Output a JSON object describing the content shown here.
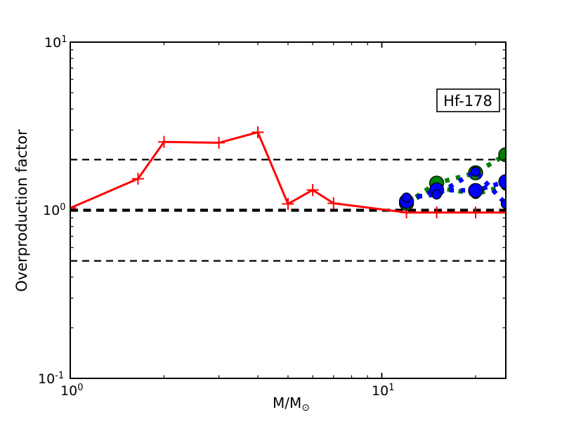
{
  "figure": {
    "background": "#ffffff",
    "frame_color": "#000000"
  },
  "legend": {
    "label": "Hf-178"
  },
  "chart_data": {
    "type": "line",
    "title": "",
    "xlabel_main": "M/M",
    "xlabel_sub": "⊙",
    "ylabel": "Overproduction factor",
    "xscale": "log",
    "yscale": "log",
    "xlim": [
      1,
      25
    ],
    "ylim": [
      0.1,
      10
    ],
    "grid": false,
    "annotation": "Hf-178",
    "annotation_position": "top-right",
    "tick_labels": {
      "x": [
        {
          "base": "10",
          "exp": "0"
        },
        {
          "base": "10",
          "exp": "1"
        }
      ],
      "y": [
        {
          "base": "10",
          "exp": "-1"
        },
        {
          "base": "10",
          "exp": "0"
        },
        {
          "base": "10",
          "exp": "1"
        }
      ]
    },
    "x_ticks": {
      "major": [
        1,
        10
      ],
      "minor": [
        2,
        3,
        4,
        5,
        6,
        7,
        8,
        9,
        20
      ]
    },
    "y_ticks": {
      "major": [
        0.1,
        1,
        10
      ],
      "minor": [
        0.2,
        0.3,
        0.4,
        0.5,
        0.6,
        0.7,
        0.8,
        0.9,
        2,
        3,
        4,
        5,
        6,
        7,
        8,
        9
      ]
    },
    "guide_lines": [
      {
        "y": 2.0,
        "weight": "thin",
        "color": "#000000",
        "style": "dashed"
      },
      {
        "y": 0.5,
        "weight": "thin",
        "color": "#000000",
        "style": "dashed"
      },
      {
        "y": 1.0,
        "weight": "thick",
        "color": "#000000",
        "style": "dashed"
      }
    ],
    "series": [
      {
        "name": "agb-models-red",
        "color": "#ff0000",
        "line_style": "solid",
        "marker": "plus",
        "marker_size": "small",
        "x": [
          1,
          1.65,
          2,
          3,
          4,
          5,
          6,
          7,
          12,
          15,
          20,
          25
        ],
        "y": [
          1.03,
          1.54,
          2.55,
          2.52,
          2.91,
          1.09,
          1.32,
          1.1,
          0.97,
          0.97,
          0.97,
          0.97
        ]
      },
      {
        "name": "massive-green-small-circles",
        "color": "#008000",
        "line_style": "dashed",
        "marker": "circle",
        "marker_size": "small",
        "x": [
          12,
          15,
          20,
          25
        ],
        "y": [
          1.1,
          1.37,
          1.25,
          1.4
        ]
      },
      {
        "name": "massive-green-large-circles",
        "color": "#008000",
        "line_style": "dashed",
        "marker": "circle",
        "marker_size": "large",
        "x": [
          12,
          15,
          20,
          25
        ],
        "y": [
          1.1,
          1.45,
          1.67,
          2.14
        ]
      },
      {
        "name": "massive-blue-large-circles",
        "color": "#0000ff",
        "line_style": "dashed",
        "marker": "circle",
        "marker_size": "large",
        "x": [
          12,
          15,
          20,
          25
        ],
        "y": [
          1.13,
          1.32,
          1.31,
          1.48
        ]
      },
      {
        "name": "massive-blue-small-circles",
        "color": "#0000ff",
        "line_style": "dashed",
        "marker": "circle",
        "marker_size": "small",
        "x": [
          12,
          15,
          20,
          25
        ],
        "y": [
          1.19,
          1.24,
          1.7,
          1.09
        ]
      }
    ]
  }
}
